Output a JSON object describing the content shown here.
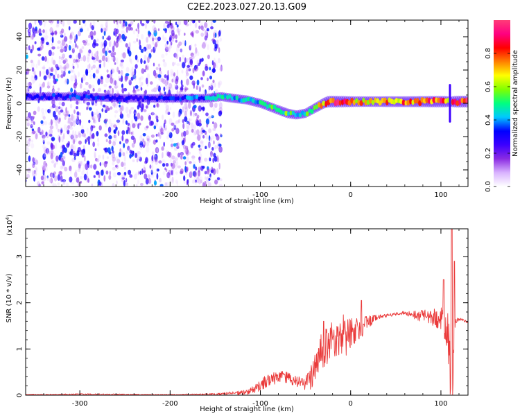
{
  "title": "C2E2.2023.027.20.13.G09",
  "colorbar": {
    "label": "Normalized spectral amplitude",
    "ticks": [
      "0.0",
      "0.2",
      "0.4",
      "0.6",
      "0.8"
    ],
    "tick_values": [
      0.0,
      0.2,
      0.4,
      0.6,
      0.8
    ],
    "range": [
      0,
      1
    ],
    "colors": [
      "#ffffff",
      "#d9b3ff",
      "#8a2be2",
      "#3c00ff",
      "#0000ff",
      "#00c8ff",
      "#00ff80",
      "#80ff00",
      "#ffff00",
      "#ff8000",
      "#ff0000",
      "#ff0080",
      "#ff3c78"
    ]
  },
  "chart_data": [
    {
      "type": "heatmap",
      "name": "spectrogram",
      "xlabel": "Height of straight line (km)",
      "ylabel": "Frequency (Hz)",
      "xlim": [
        -360,
        130
      ],
      "ylim": [
        -50,
        50
      ],
      "x_ticks": [
        -300,
        -200,
        -100,
        0,
        100
      ],
      "x_tick_labels": [
        "-300",
        "-200",
        "-100",
        "0",
        "100"
      ],
      "y_ticks": [
        -40,
        -20,
        0,
        20,
        40
      ],
      "y_tick_labels": [
        "-40",
        "-20",
        "0",
        "20",
        "40"
      ],
      "x_minor_step": 20,
      "y_minor_step": 5,
      "background_noise_extent_km": [
        -360,
        -143
      ],
      "ridge": {
        "x": [
          -360,
          -300,
          -250,
          -200,
          -160,
          -143,
          -130,
          -115,
          -100,
          -90,
          -80,
          -70,
          -60,
          -50,
          -40,
          -30,
          -25,
          -20,
          -10,
          0,
          20,
          40,
          60,
          80,
          100,
          105,
          110,
          115,
          120,
          130
        ],
        "y": [
          4,
          4,
          3,
          3,
          3,
          4,
          3,
          2,
          0,
          -2,
          -4,
          -6,
          -7,
          -6,
          -3,
          0,
          1,
          1,
          1,
          1,
          1,
          1,
          1,
          1,
          1,
          1,
          1,
          1,
          1,
          1
        ],
        "amplitude": [
          0.3,
          0.35,
          0.3,
          0.35,
          0.4,
          0.45,
          0.45,
          0.45,
          0.45,
          0.5,
          0.55,
          0.55,
          0.45,
          0.5,
          0.6,
          0.75,
          0.85,
          0.9,
          0.85,
          0.75,
          0.7,
          0.75,
          0.75,
          0.8,
          0.85,
          0.85,
          0.6,
          0.85,
          0.9,
          0.9
        ]
      },
      "spike": {
        "x": 110,
        "y_range": [
          -11,
          11
        ]
      }
    },
    {
      "type": "line",
      "name": "snr",
      "xlabel": "Height of straight line (km)",
      "ylabel": "SNR (10 * v/v)",
      "y_scale_label": "(x10",
      "y_scale_exponent": "4",
      "xlim": [
        -360,
        130
      ],
      "ylim": [
        0,
        3.6
      ],
      "x_ticks": [
        -300,
        -200,
        -100,
        0,
        100
      ],
      "x_tick_labels": [
        "-300",
        "-200",
        "-100",
        "0",
        "100"
      ],
      "y_ticks": [
        0,
        1,
        2,
        3
      ],
      "y_tick_labels": [
        "0",
        "1",
        "2",
        "3"
      ],
      "x_minor_step": 20,
      "y_minor_step": 0.2,
      "color": "#ea3a3a",
      "envelope": {
        "x": [
          -360,
          -300,
          -200,
          -150,
          -120,
          -110,
          -100,
          -95,
          -85,
          -75,
          -70,
          -60,
          -50,
          -45,
          -40,
          -35,
          -30,
          -25,
          -20,
          -15,
          -10,
          -5,
          0,
          5,
          10,
          15,
          20,
          25,
          30,
          40,
          50,
          60,
          70,
          80,
          90,
          95,
          100,
          105,
          108,
          110,
          112,
          114,
          116,
          120,
          130
        ],
        "y": [
          0.01,
          0.02,
          0.01,
          0.02,
          0.05,
          0.1,
          0.2,
          0.28,
          0.35,
          0.4,
          0.38,
          0.3,
          0.25,
          0.35,
          0.55,
          0.85,
          1.0,
          1.1,
          1.2,
          1.25,
          1.3,
          1.3,
          1.35,
          1.4,
          1.45,
          1.5,
          1.6,
          1.65,
          1.7,
          1.72,
          1.75,
          1.78,
          1.75,
          1.72,
          1.7,
          1.68,
          1.62,
          1.5,
          1.2,
          0.9,
          0.6,
          0.4,
          1.6,
          1.65,
          1.58
        ],
        "spread": [
          0.01,
          0.015,
          0.01,
          0.02,
          0.05,
          0.08,
          0.12,
          0.15,
          0.15,
          0.12,
          0.12,
          0.12,
          0.15,
          0.25,
          0.35,
          0.4,
          0.4,
          0.4,
          0.4,
          0.45,
          0.45,
          0.45,
          0.35,
          0.3,
          0.25,
          0.2,
          0.15,
          0.08,
          0.05,
          0.04,
          0.04,
          0.04,
          0.1,
          0.15,
          0.2,
          0.22,
          0.3,
          0.4,
          0.7,
          1.0,
          1.2,
          1.0,
          0.06,
          0.04,
          0.02
        ]
      },
      "peaks": [
        {
          "x": 112,
          "y": 3.6
        },
        {
          "x": 115,
          "y": 2.9
        },
        {
          "x": 103,
          "y": 2.5
        },
        {
          "x": 12,
          "y": 2.05
        },
        {
          "x": -30,
          "y": 1.6
        }
      ]
    }
  ]
}
